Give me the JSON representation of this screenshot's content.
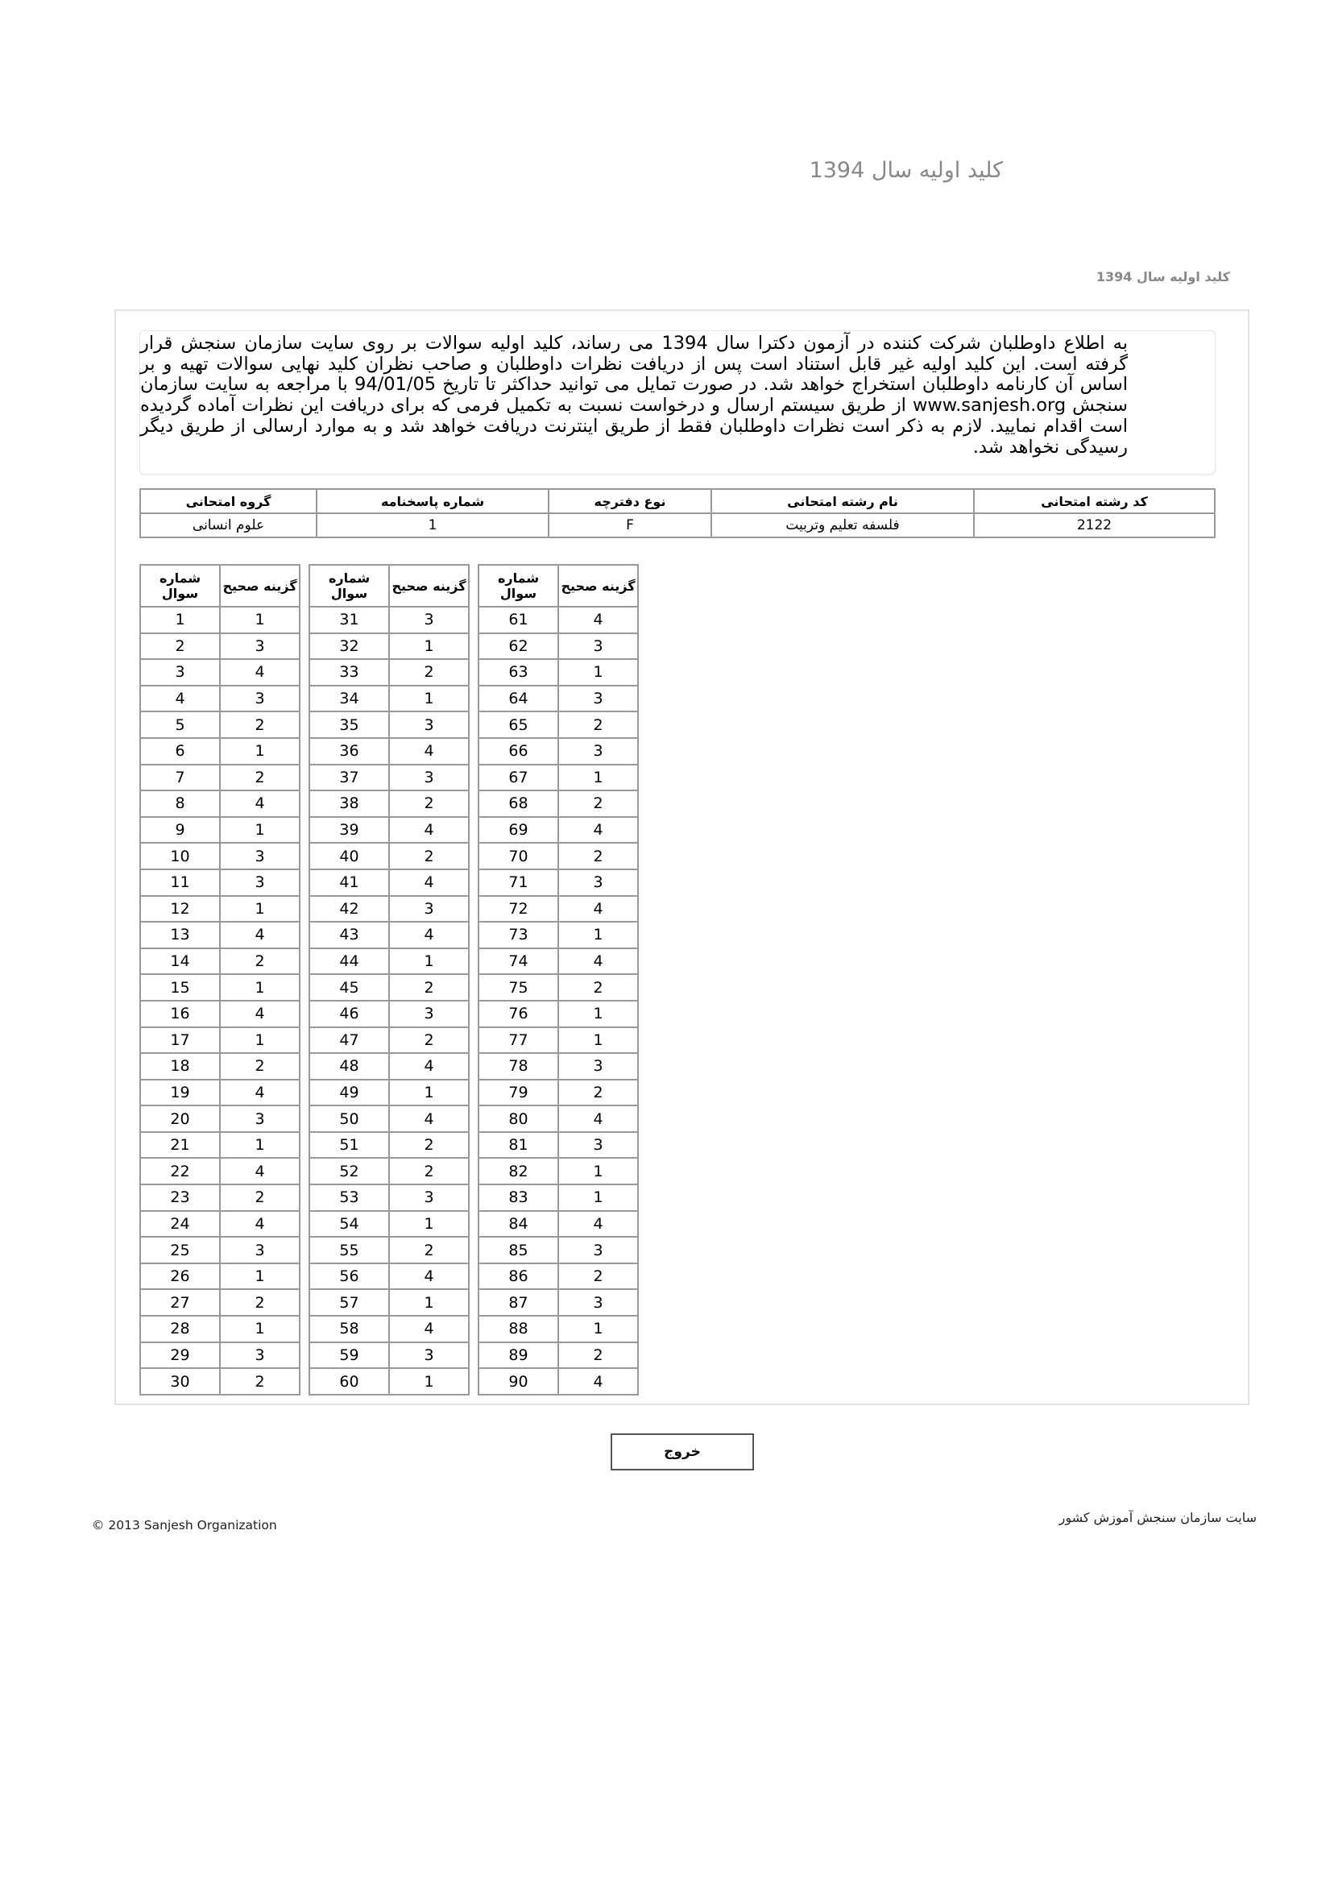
{
  "header": {
    "title": "كليد اوليه سال 1394",
    "subtitle": "كليد اوليه سال 1394"
  },
  "notice": {
    "text": "به اطلاع داوطلبان شرکت کننده در آزمون دکترا سال 1394 می رساند، کلید اولیه سوالات بر روی سایت سازمان سنجش قرار گرفته است. این کلید اولیه غیر قابل استناد است پس از دریافت نظرات داوطلبان و صاحب نظران کلید نهایی سوالات تهیه و بر اساس آن کارنامه داوطلبان استخراج خواهد شد. در صورت تمایل می توانید حداکثر تا تاریخ 94/01/05 با مراجعه به سایت سازمان سنجش www.sanjesh.org از طریق  سیستم ارسال و درخواست نسبت به تکمیل فرمی که برای دریافت این نظرات آماده گردیده است اقدام نمایید. لازم به ذکر است نظرات داوطلبان فقط از طریق اینترنت دریافت خواهد شد و به موارد ارسالی از طریق دیگر رسیدگی نخواهد شد."
  },
  "info": {
    "headers": [
      "کد رشته امتحانی",
      "نام رشته امتحانی",
      "نوع دفترچه",
      "شماره پاسخنامه",
      "گروه امتحانی"
    ],
    "values": [
      "2122",
      "فلسفه تعلیم وتربیت",
      "F",
      "1",
      "علوم انسانی"
    ]
  },
  "answer_key": {
    "question_header": "شماره سوال",
    "answer_header": "گزینه صحیح",
    "answers": [
      1,
      3,
      4,
      3,
      2,
      1,
      2,
      4,
      1,
      3,
      3,
      1,
      4,
      2,
      1,
      4,
      1,
      2,
      4,
      3,
      1,
      4,
      2,
      4,
      3,
      1,
      2,
      1,
      3,
      2,
      3,
      1,
      2,
      1,
      3,
      4,
      3,
      2,
      4,
      2,
      4,
      3,
      4,
      1,
      2,
      3,
      2,
      4,
      1,
      4,
      2,
      2,
      3,
      1,
      2,
      4,
      1,
      4,
      3,
      1,
      4,
      3,
      1,
      3,
      2,
      3,
      1,
      2,
      4,
      2,
      3,
      4,
      1,
      4,
      2,
      1,
      1,
      3,
      2,
      4,
      3,
      1,
      1,
      4,
      3,
      2,
      3,
      1,
      2,
      4
    ]
  },
  "actions": {
    "exit_label": "خروج"
  },
  "footer": {
    "copyright": "© 2013 Sanjesh Organization",
    "site": "سایت سازمان سنجش آموزش کشور"
  }
}
